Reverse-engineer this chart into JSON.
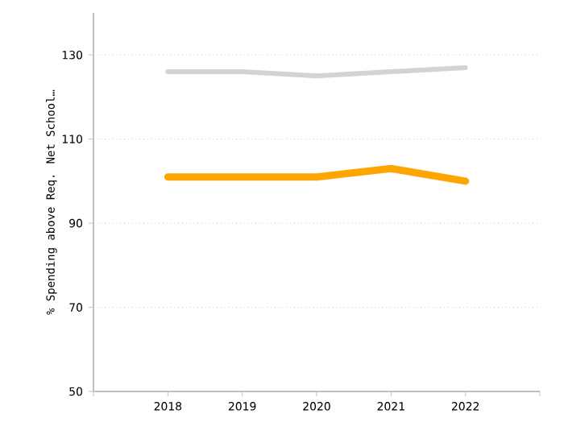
{
  "chart_data": {
    "type": "line",
    "ylabel": "% Spending above Req. Net School…",
    "categories": [
      "2018",
      "2019",
      "2020",
      "2021",
      "2022"
    ],
    "series": [
      {
        "color": "#d3d3d3",
        "values": [
          126,
          126,
          125,
          126,
          127
        ]
      },
      {
        "color": "#ffa500",
        "values": [
          101,
          101,
          101,
          103,
          100
        ]
      }
    ],
    "ylim": [
      50,
      140
    ],
    "yticks": [
      50,
      70,
      90,
      110,
      130
    ],
    "grid": "y",
    "marker": "none",
    "line_style": "solid"
  }
}
